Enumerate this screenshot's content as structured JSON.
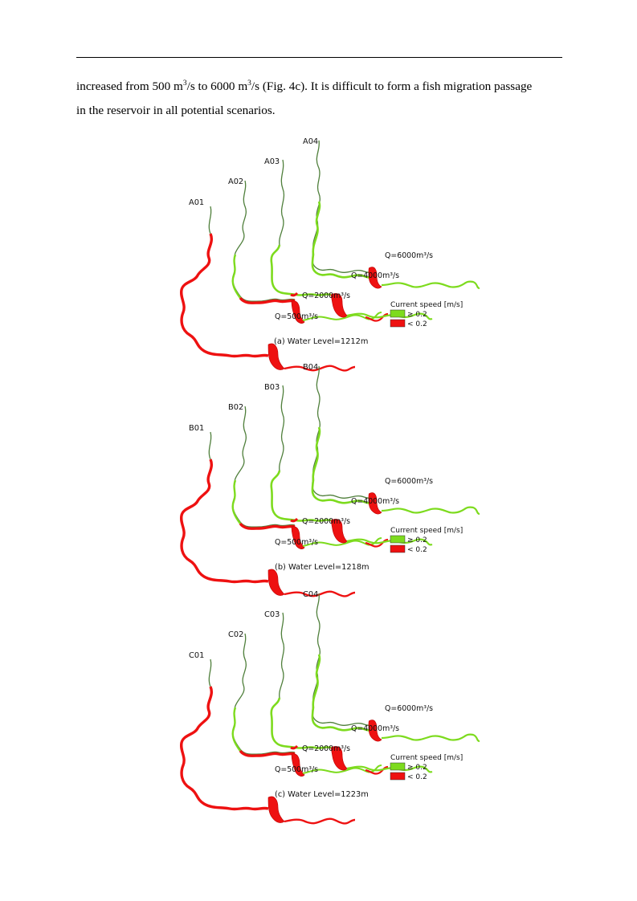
{
  "paragraph": {
    "line1_a": "increased from 500 m",
    "line1_sup1": "3",
    "line1_b": "/s to 6000 m",
    "line1_sup2": "3",
    "line1_c": "/s (Fig. 4c). It is difficult to form a fish migration passage",
    "line2": "in the reservoir in all potential scenarios."
  },
  "legend": {
    "title": "Current speed [m/s]",
    "high_label": "≥ 0.2",
    "low_label": "< 0.2",
    "high_color": "#7ddb1e",
    "low_color": "#ee1111"
  },
  "panels": [
    {
      "caption": "(a) Water Level=1212m",
      "sections": [
        "A01",
        "A02",
        "A03",
        "A04"
      ],
      "flows": [
        "Q=500m³/s",
        "Q=2000m³/s",
        "Q=4000m³/s",
        "Q=6000m³/s"
      ]
    },
    {
      "caption": "(b) Water Level=1218m",
      "sections": [
        "B01",
        "B02",
        "B03",
        "B04"
      ],
      "flows": [
        "Q=500m³/s",
        "Q=2000m³/s",
        "Q=4000m³/s",
        "Q=6000m³/s"
      ]
    },
    {
      "caption": "(c) Water Level=1223m",
      "sections": [
        "C01",
        "C02",
        "C03",
        "C04"
      ],
      "flows": [
        "Q=500m³/s",
        "Q=2000m³/s",
        "Q=4000m³/s",
        "Q=6000m³/s"
      ]
    }
  ]
}
